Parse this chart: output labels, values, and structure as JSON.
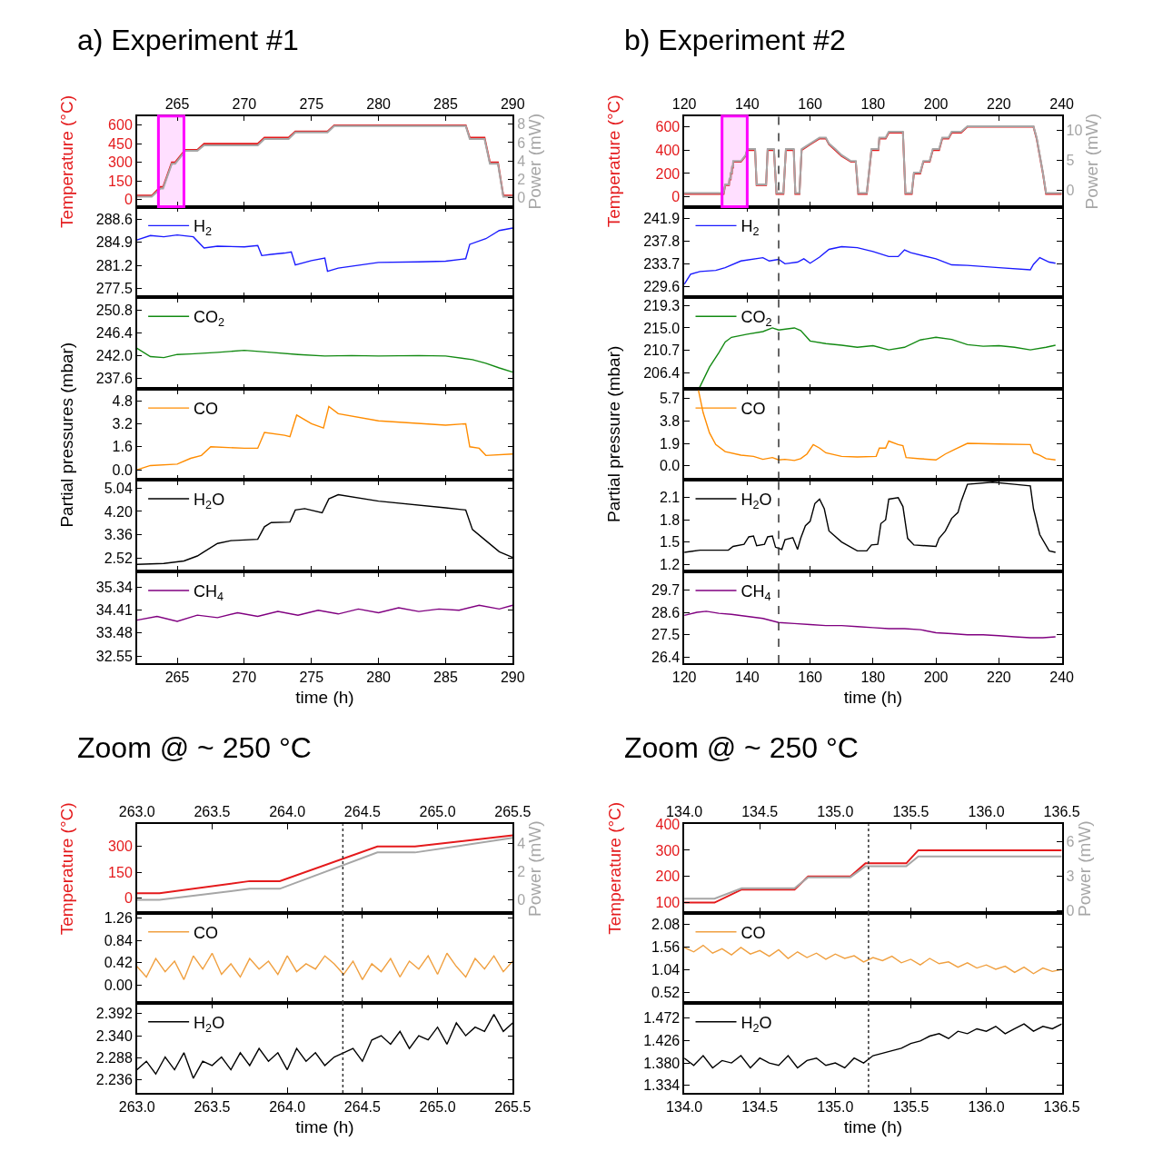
{
  "chart_data": [
    {
      "type": "line",
      "title": "a) Experiment #1",
      "ylabel": "Temperature (°C)",
      "y2label": "Power (mW)",
      "xlim": [
        262,
        290
      ],
      "xticks": [
        265,
        270,
        275,
        280,
        285,
        290
      ],
      "ylim": [
        -60,
        675
      ],
      "yticks": [
        0,
        150,
        300,
        450,
        600
      ],
      "y2lim": [
        -1,
        8.9
      ],
      "y2ticks": [
        0,
        2,
        4,
        6,
        8
      ],
      "x": [
        262,
        263.1,
        263.75,
        263.95,
        264.6,
        264.85,
        265.6,
        266.5,
        267,
        271,
        271.5,
        273.3,
        273.8,
        276.2,
        276.7,
        286.5,
        286.8,
        287.9,
        288.3,
        288.9,
        289.3,
        290
      ],
      "series": [
        {
          "color": "#a6a6a6",
          "axis": "y2",
          "values": [
            0.1,
            0.1,
            1.0,
            1.0,
            3.7,
            3.7,
            5.1,
            5.1,
            5.7,
            5.7,
            6.4,
            6.4,
            7.1,
            7.1,
            7.8,
            7.8,
            6.4,
            6.4,
            3.7,
            3.7,
            0.1,
            0.1
          ]
        },
        {
          "color": "#e41a1c",
          "values": [
            30,
            30,
            100,
            100,
            300,
            300,
            400,
            400,
            450,
            450,
            500,
            500,
            550,
            550,
            600,
            600,
            500,
            500,
            300,
            300,
            30,
            30
          ]
        }
      ],
      "bands": [
        {
          "axis": "x",
          "from": 263.6,
          "to": 265.5,
          "color": "#ff00ff"
        }
      ]
    },
    {
      "type": "line",
      "xlim": [
        262,
        290
      ],
      "xticks": [
        265,
        270,
        275,
        280,
        285,
        290
      ],
      "ylim": [
        276.1,
        290.6
      ],
      "yticks": [
        277.5,
        281.2,
        284.9,
        288.6
      ],
      "tick_labels": "y",
      "legend": "top left",
      "series": [
        {
          "name": "H$_{2}$",
          "color": "#1a1aff",
          "x": [
            262,
            263,
            264,
            265,
            266.2,
            267,
            268,
            270,
            271,
            271.3,
            272,
            273,
            273.5,
            273.8,
            275,
            276,
            276.2,
            277,
            280,
            283,
            285,
            286.5,
            286.8,
            288,
            289,
            290
          ],
          "values": [
            285.3,
            286.0,
            285.8,
            286.1,
            285.8,
            284.0,
            284.3,
            284.2,
            284.4,
            282.8,
            283.0,
            283.2,
            283.4,
            281.3,
            282.0,
            282.4,
            280.3,
            280.8,
            281.7,
            281.8,
            281.9,
            282.3,
            284.6,
            285.5,
            286.8,
            287.2
          ]
        }
      ]
    },
    {
      "type": "line",
      "xlim": [
        262,
        290
      ],
      "xticks": [
        265,
        270,
        275,
        280,
        285,
        290
      ],
      "ylim": [
        235.5,
        253.2
      ],
      "yticks": [
        237.6,
        {
          "value": 242,
          "label": "242.0"
        },
        246.4,
        250.8
      ],
      "tick_labels": "y",
      "legend": "top left",
      "series": [
        {
          "name": "CO$_{2}$",
          "color": "#138a13",
          "x": [
            262,
            263,
            264,
            265,
            266,
            268,
            270,
            272,
            274,
            276,
            278,
            280,
            283,
            285,
            287,
            288,
            289,
            290
          ],
          "values": [
            243.4,
            241.8,
            241.6,
            242.2,
            242.3,
            242.6,
            243.0,
            242.6,
            242.2,
            241.9,
            242.0,
            241.9,
            242.0,
            241.9,
            241.2,
            240.5,
            239.6,
            238.8
          ]
        }
      ]
    },
    {
      "type": "line",
      "xlim": [
        262,
        290
      ],
      "xticks": [
        265,
        270,
        275,
        280,
        285,
        290
      ],
      "ylim": [
        -0.7,
        5.6
      ],
      "yticks": [
        {
          "value": 0,
          "label": "0.0"
        },
        1.6,
        3.2,
        4.8
      ],
      "tick_labels": "y",
      "legend": "top left",
      "ylabel": "Partial pressures (mbar)",
      "series": [
        {
          "name": "CO",
          "color": "#ff8c00",
          "x": [
            262,
            263,
            265,
            266,
            266.8,
            267.5,
            270,
            271,
            271.5,
            273,
            273.4,
            273.9,
            275,
            275.9,
            276.3,
            277,
            280,
            285,
            286.5,
            286.8,
            287.5,
            288,
            290
          ],
          "values": [
            0.0,
            0.3,
            0.4,
            0.8,
            1.0,
            1.6,
            1.5,
            1.5,
            2.6,
            2.4,
            2.3,
            3.8,
            3.2,
            2.9,
            4.4,
            3.9,
            3.4,
            3.1,
            3.2,
            1.6,
            1.5,
            1.0,
            1.1
          ]
        }
      ]
    },
    {
      "type": "line",
      "xlim": [
        262,
        290
      ],
      "xticks": [
        265,
        270,
        275,
        280,
        285,
        290
      ],
      "ylim": [
        2.04,
        5.33
      ],
      "yticks": [
        2.52,
        3.36,
        {
          "value": 4.2,
          "label": "4.20"
        },
        5.04
      ],
      "tick_labels": "y",
      "legend": "top left",
      "series": [
        {
          "name": "H$_{2}$O",
          "color": "#000000",
          "x": [
            262,
            264,
            265.5,
            266.5,
            267,
            268,
            269,
            271,
            271.5,
            272,
            273.4,
            273.8,
            274.5,
            275.8,
            276.3,
            277,
            280,
            285,
            286.5,
            287,
            288,
            289,
            290
          ],
          "values": [
            2.3,
            2.33,
            2.42,
            2.6,
            2.75,
            3.05,
            3.15,
            3.2,
            3.65,
            3.8,
            3.82,
            4.25,
            4.3,
            4.15,
            4.65,
            4.8,
            4.57,
            4.33,
            4.25,
            3.55,
            3.15,
            2.75,
            2.55
          ]
        }
      ]
    },
    {
      "type": "line",
      "xlim": [
        262,
        290
      ],
      "xticks": [
        265,
        270,
        275,
        280,
        285,
        290
      ],
      "ylim": [
        32.26,
        35.96
      ],
      "yticks": [
        32.55,
        33.48,
        34.41,
        35.34
      ],
      "legend": "top left",
      "xlabel": "time (h)",
      "series": [
        {
          "name": "CH$_{4}$",
          "color": "#800080",
          "x": [
            262,
            263.5,
            265,
            266.5,
            268,
            269.5,
            271,
            272.5,
            274,
            275.5,
            277,
            278.5,
            280,
            281.5,
            283,
            284.5,
            286,
            287.5,
            289,
            290
          ],
          "values": [
            34.0,
            34.15,
            33.95,
            34.2,
            34.1,
            34.3,
            34.15,
            34.35,
            34.2,
            34.4,
            34.25,
            34.45,
            34.3,
            34.5,
            34.35,
            34.45,
            34.4,
            34.6,
            34.45,
            34.6
          ]
        }
      ]
    },
    {
      "type": "line",
      "title": "b) Experiment #2",
      "ylabel": "Temperature (°C)",
      "y2label": "Power (mW)",
      "xlim": [
        120,
        240
      ],
      "xticks": [
        120,
        140,
        160,
        180,
        200,
        220,
        240
      ],
      "ylim": [
        -85,
        692
      ],
      "yticks": [
        0,
        200,
        400,
        600
      ],
      "y2lim": [
        -2.7,
        12.4
      ],
      "y2ticks": [
        0,
        5,
        10
      ],
      "x": [
        120,
        132.5,
        133,
        134.2,
        134.38,
        134.73,
        134.82,
        135.1,
        135.2,
        135.47,
        135.55,
        138,
        139.5,
        140,
        142.5,
        143,
        146,
        146.5,
        148.5,
        149.3,
        151.5,
        152.3,
        154.8,
        155.3,
        156.6,
        157.3,
        160,
        163,
        165,
        166,
        168,
        170,
        173,
        174.5,
        175.3,
        178,
        179.5,
        181.7,
        182,
        184,
        185,
        189.5,
        190.3,
        192.3,
        193,
        195,
        196,
        198,
        199,
        201,
        202,
        204,
        205,
        208,
        210,
        231,
        232,
        234,
        235,
        240
      ],
      "series": [
        {
          "color": "#a6a6a6",
          "axis": "y2",
          "values": [
            -0.4,
            -0.4,
            1.0,
            1.0,
            2.0,
            2.0,
            3.0,
            3.0,
            4.0,
            4.0,
            4.9,
            4.9,
            5.9,
            6.9,
            6.9,
            1.0,
            1.0,
            6.9,
            6.9,
            -0.4,
            -0.4,
            6.9,
            6.9,
            -0.4,
            -0.4,
            6.9,
            7.8,
            8.8,
            8.8,
            7.8,
            6.9,
            5.9,
            4.9,
            4.9,
            -0.4,
            -0.4,
            6.9,
            6.9,
            8.8,
            8.8,
            9.8,
            9.8,
            -0.4,
            -0.4,
            3.0,
            3.0,
            4.9,
            4.9,
            6.9,
            6.9,
            8.8,
            8.8,
            9.8,
            9.8,
            10.7,
            10.7,
            8.8,
            3.0,
            -0.4,
            -0.4
          ]
        },
        {
          "color": "#e41a1c",
          "values": [
            25,
            25,
            100,
            100,
            150,
            150,
            200,
            200,
            250,
            250,
            300,
            300,
            350,
            400,
            400,
            100,
            100,
            400,
            400,
            25,
            25,
            400,
            400,
            25,
            25,
            400,
            450,
            500,
            500,
            450,
            400,
            350,
            300,
            300,
            25,
            25,
            400,
            400,
            500,
            500,
            550,
            550,
            25,
            25,
            200,
            200,
            300,
            300,
            400,
            400,
            500,
            500,
            550,
            550,
            600,
            600,
            500,
            200,
            25,
            25
          ]
        }
      ],
      "bands": [
        {
          "axis": "x",
          "from": 132,
          "to": 140,
          "color": "#ff00ff"
        }
      ],
      "ref_lines": [
        {
          "axis": "x",
          "value": 150,
          "line_style": "dashed",
          "color": "#333333"
        }
      ]
    },
    {
      "type": "line",
      "xlim": [
        120,
        240
      ],
      "xticks": [
        120,
        140,
        160,
        180,
        200,
        220,
        240
      ],
      "ylim": [
        227.6,
        244.0
      ],
      "yticks": [
        229.6,
        233.7,
        237.8,
        241.9
      ],
      "tick_labels": "y",
      "legend": "top left",
      "ref_lines": [
        {
          "axis": "x",
          "value": 150,
          "line_style": "dashed",
          "color": "#333333"
        }
      ],
      "series": [
        {
          "name": "H$_{2}$",
          "color": "#1a1aff",
          "x": [
            120,
            122,
            125,
            130,
            133,
            138,
            145,
            147,
            150,
            152,
            156,
            158,
            160,
            163,
            166,
            170,
            175,
            180,
            185,
            188,
            190,
            192,
            200,
            205,
            210,
            220,
            230,
            231,
            233,
            236,
            238
          ],
          "values": [
            230.0,
            231.8,
            232.3,
            232.5,
            233.0,
            234.2,
            234.8,
            234.2,
            234.5,
            233.7,
            234.0,
            234.6,
            233.8,
            234.9,
            236.3,
            236.8,
            236.6,
            235.9,
            235.0,
            235.0,
            236.2,
            235.7,
            234.6,
            233.5,
            233.4,
            233.0,
            232.6,
            233.6,
            234.8,
            234.0,
            233.8
          ]
        }
      ]
    },
    {
      "type": "line",
      "xlim": [
        120,
        240
      ],
      "xticks": [
        120,
        140,
        160,
        180,
        200,
        220,
        240
      ],
      "ylim": [
        203.3,
        220.8
      ],
      "yticks": [
        206.4,
        210.7,
        {
          "value": 215,
          "label": "215.0"
        },
        219.3
      ],
      "tick_labels": "y",
      "legend": "top left",
      "ref_lines": [
        {
          "axis": "x",
          "value": 150,
          "line_style": "dashed",
          "color": "#333333"
        }
      ],
      "series": [
        {
          "name": "CO$_{2}$",
          "color": "#138a13",
          "x": [
            124.6,
            128,
            131,
            133,
            135,
            140,
            145,
            148,
            150,
            155,
            157,
            160,
            165,
            170,
            175,
            180,
            185,
            190,
            195,
            200,
            205,
            210,
            215,
            220,
            225,
            230,
            235,
            238
          ],
          "values": [
            203.3,
            207.5,
            210.3,
            212.3,
            213.2,
            213.8,
            214.3,
            215.0,
            214.6,
            215.0,
            214.5,
            212.5,
            212.0,
            211.7,
            211.3,
            211.6,
            210.8,
            211.3,
            212.7,
            213.2,
            212.8,
            211.8,
            211.5,
            211.6,
            211.3,
            210.8,
            211.3,
            211.7
          ]
        }
      ]
    },
    {
      "type": "line",
      "xlim": [
        120,
        240
      ],
      "xticks": [
        120,
        140,
        160,
        180,
        200,
        220,
        240
      ],
      "ylim": [
        -1.2,
        6.5
      ],
      "yticks": [
        {
          "value": 0,
          "label": "0.0"
        },
        1.9,
        3.8,
        5.7
      ],
      "tick_labels": "y",
      "legend": "top left",
      "ylabel": "Partial pressure (mbar)",
      "ref_lines": [
        {
          "axis": "x",
          "value": 150,
          "line_style": "dashed",
          "color": "#333333"
        }
      ],
      "series": [
        {
          "name": "CO",
          "color": "#ff8c00",
          "x": [
            124.5,
            126,
            128,
            130,
            133,
            138,
            142,
            145,
            148,
            150,
            152,
            155,
            157,
            159,
            161,
            163,
            165,
            170,
            175,
            181,
            182,
            184,
            185,
            188,
            189.5,
            190.5,
            195,
            200,
            203,
            206,
            210,
            220,
            230,
            231,
            233,
            235,
            238
          ],
          "values": [
            6.4,
            4.5,
            2.8,
            1.8,
            1.2,
            0.9,
            0.8,
            0.55,
            0.7,
            0.5,
            0.55,
            0.45,
            0.6,
            1.0,
            1.8,
            1.5,
            1.1,
            0.8,
            0.75,
            0.8,
            1.5,
            1.5,
            2.1,
            1.8,
            1.7,
            0.7,
            0.6,
            0.5,
            1.0,
            1.4,
            1.9,
            1.85,
            1.8,
            1.1,
            0.9,
            0.6,
            0.5
          ]
        }
      ]
    },
    {
      "type": "line",
      "xlim": [
        120,
        240
      ],
      "xticks": [
        120,
        140,
        160,
        180,
        200,
        220,
        240
      ],
      "ylim": [
        1.1,
        2.34
      ],
      "yticks": [
        1.2,
        1.5,
        1.8,
        2.1
      ],
      "tick_labels": "y",
      "legend": "top left",
      "ref_lines": [
        {
          "axis": "x",
          "value": 150,
          "line_style": "dashed",
          "color": "#333333"
        }
      ],
      "series": [
        {
          "name": "H$_{2}$O",
          "color": "#000000",
          "x": [
            120,
            125,
            130,
            134,
            135.5,
            139,
            140.5,
            142,
            143,
            145.5,
            146.5,
            148,
            149,
            151,
            152,
            154.5,
            156,
            157,
            158.5,
            160,
            161.5,
            163,
            164.5,
            166,
            170,
            175,
            178,
            179.5,
            181.5,
            182.5,
            184,
            185,
            188,
            189.5,
            191,
            193,
            200,
            201,
            203,
            205,
            207,
            208,
            210,
            218,
            225,
            230,
            231,
            233,
            236,
            238
          ],
          "values": [
            1.36,
            1.39,
            1.39,
            1.39,
            1.44,
            1.47,
            1.57,
            1.58,
            1.45,
            1.47,
            1.57,
            1.58,
            1.43,
            1.4,
            1.53,
            1.56,
            1.4,
            1.55,
            1.72,
            1.78,
            2.02,
            2.08,
            1.95,
            1.65,
            1.5,
            1.38,
            1.38,
            1.46,
            1.47,
            1.75,
            1.8,
            2.08,
            2.1,
            1.98,
            1.55,
            1.46,
            1.44,
            1.55,
            1.65,
            1.82,
            1.9,
            2.05,
            2.28,
            2.31,
            2.28,
            2.26,
            1.95,
            1.6,
            1.38,
            1.36
          ]
        }
      ]
    },
    {
      "type": "line",
      "xlim": [
        120,
        240
      ],
      "xticks": [
        120,
        140,
        160,
        180,
        200,
        220,
        240
      ],
      "ylim": [
        26.1,
        30.6
      ],
      "yticks": [
        26.4,
        27.5,
        28.6,
        29.7
      ],
      "legend": "top left",
      "xlabel": "time (h)",
      "ref_lines": [
        {
          "axis": "x",
          "value": 150,
          "line_style": "dashed",
          "color": "#333333"
        }
      ],
      "series": [
        {
          "name": "CH$_{4}$",
          "color": "#800080",
          "x": [
            120,
            124,
            127,
            131,
            135,
            140,
            145,
            150,
            155,
            160,
            165,
            170,
            175,
            180,
            185,
            190,
            195,
            200,
            205,
            210,
            215,
            220,
            225,
            230,
            234,
            238
          ],
          "values": [
            28.45,
            28.6,
            28.65,
            28.55,
            28.5,
            28.4,
            28.3,
            28.1,
            28.05,
            28.0,
            27.95,
            27.95,
            27.9,
            27.85,
            27.8,
            27.8,
            27.75,
            27.6,
            27.55,
            27.5,
            27.5,
            27.45,
            27.4,
            27.35,
            27.35,
            27.4
          ]
        }
      ]
    },
    {
      "type": "line",
      "title": "Zoom @ ~ 250 °C",
      "ylabel": "Temperature (°C)",
      "y2label": "Power (mW)",
      "xlim": [
        263,
        265.5
      ],
      "xticks": [
        {
          "value": 263,
          "label": "263.0"
        },
        263.5,
        {
          "value": 264,
          "label": "264.0"
        },
        264.5,
        {
          "value": 265,
          "label": "265.0"
        },
        265.5
      ],
      "ylim": [
        -85,
        430
      ],
      "yticks": [
        0,
        150,
        300
      ],
      "y2lim": [
        -0.93,
        5.34
      ],
      "y2ticks": [
        0,
        2,
        4
      ],
      "x": [
        263,
        263.15,
        263.75,
        263.95,
        264.6,
        264.85,
        265.5
      ],
      "series": [
        {
          "color": "#a6a6a6",
          "axis": "y2",
          "values": [
            0,
            0,
            0.78,
            0.78,
            3.34,
            3.34,
            4.37
          ]
        },
        {
          "color": "#e41a1c",
          "values": [
            30,
            30,
            100,
            100,
            300,
            300,
            365
          ]
        }
      ],
      "ref_lines": [
        {
          "axis": "x",
          "value": 264.37,
          "line_style": "dotted",
          "color": "#333333"
        }
      ]
    },
    {
      "type": "line",
      "xlim": [
        263,
        265.5
      ],
      "xticks": [
        263,
        263.5,
        264,
        264.5,
        265,
        265.5
      ],
      "ylim": [
        -0.34,
        1.36
      ],
      "yticks": [
        {
          "value": 0,
          "label": "0.00"
        },
        0.42,
        0.84,
        1.26
      ],
      "tick_labels": "y",
      "legend": "top left",
      "ref_lines": [
        {
          "axis": "x",
          "value": 264.37,
          "line_style": "dotted",
          "color": "#333333"
        }
      ],
      "x": [
        263,
        263.0625,
        263.125,
        263.1875,
        263.25,
        263.3125,
        263.375,
        263.4375,
        263.5,
        263.5625,
        263.625,
        263.6875,
        263.75,
        263.8125,
        263.875,
        263.9375,
        264,
        264.0625,
        264.125,
        264.1875,
        264.25,
        264.3125,
        264.375,
        264.4375,
        264.5,
        264.5625,
        264.625,
        264.6875,
        264.75,
        264.8125,
        264.875,
        264.9375,
        265,
        265.0625,
        265.125,
        265.1875,
        265.25,
        265.3125,
        265.375,
        265.4375,
        265.5
      ],
      "series": [
        {
          "name": "CO",
          "color": "#f0a040",
          "values": [
            0.35,
            0.15,
            0.5,
            0.25,
            0.45,
            0.1,
            0.55,
            0.3,
            0.6,
            0.2,
            0.4,
            0.15,
            0.5,
            0.3,
            0.45,
            0.2,
            0.55,
            0.25,
            0.4,
            0.3,
            0.55,
            0.4,
            0.2,
            0.45,
            0.1,
            0.4,
            0.25,
            0.5,
            0.15,
            0.45,
            0.3,
            0.55,
            0.2,
            0.6,
            0.35,
            0.15,
            0.5,
            0.3,
            0.55,
            0.25,
            0.45
          ]
        }
      ]
    },
    {
      "type": "line",
      "xlim": [
        263,
        265.5
      ],
      "xticks": [
        {
          "value": 263,
          "label": "263.0"
        },
        263.5,
        {
          "value": 264,
          "label": "264.0"
        },
        264.5,
        {
          "value": 265,
          "label": "265.0"
        },
        265.5
      ],
      "ylim": [
        2.206,
        2.417
      ],
      "yticks": [
        2.236,
        2.288,
        {
          "value": 2.34,
          "label": "2.340"
        },
        2.392
      ],
      "legend": "top left",
      "xlabel": "time (h)",
      "ref_lines": [
        {
          "axis": "x",
          "value": 264.37,
          "line_style": "dotted",
          "color": "#333333"
        }
      ],
      "x": [
        263,
        263.0625,
        263.125,
        263.1875,
        263.25,
        263.3125,
        263.375,
        263.4375,
        263.5,
        263.5625,
        263.625,
        263.6875,
        263.75,
        263.8125,
        263.875,
        263.9375,
        264,
        264.0625,
        264.125,
        264.1875,
        264.25,
        264.3125,
        264.375,
        264.4375,
        264.5,
        264.5625,
        264.625,
        264.6875,
        264.75,
        264.8125,
        264.875,
        264.9375,
        265,
        265.0625,
        265.125,
        265.1875,
        265.25,
        265.3125,
        265.375,
        265.4375,
        265.5
      ],
      "series": [
        {
          "name": "H$_{2}$O",
          "color": "#000000",
          "values": [
            2.26,
            2.28,
            2.25,
            2.29,
            2.26,
            2.3,
            2.24,
            2.28,
            2.27,
            2.29,
            2.26,
            2.3,
            2.27,
            2.31,
            2.28,
            2.3,
            2.26,
            2.31,
            2.28,
            2.3,
            2.27,
            2.29,
            2.3,
            2.31,
            2.28,
            2.33,
            2.34,
            2.32,
            2.35,
            2.31,
            2.34,
            2.33,
            2.36,
            2.32,
            2.37,
            2.34,
            2.36,
            2.35,
            2.39,
            2.35,
            2.37
          ]
        }
      ]
    },
    {
      "type": "line",
      "title": "Zoom @ ~ 250 °C",
      "ylabel": "Temperature (°C)",
      "y2label": "Power (mW)",
      "xlim": [
        134,
        136.5
      ],
      "xticks": [
        {
          "value": 134,
          "label": "134.0"
        },
        134.5,
        {
          "value": 135,
          "label": "135.0"
        },
        135.5,
        {
          "value": 136,
          "label": "136.0"
        },
        136.5
      ],
      "ylim": [
        60,
        400
      ],
      "yticks": [
        100,
        200,
        300,
        400
      ],
      "y2lim": [
        -0.2,
        7.5
      ],
      "y2ticks": [
        0,
        3,
        6
      ],
      "x": [
        134,
        134.2,
        134.38,
        134.73,
        134.82,
        135.1,
        135.2,
        135.47,
        135.55,
        136.5
      ],
      "series": [
        {
          "color": "#a6a6a6",
          "axis": "y2",
          "values": [
            1.05,
            1.05,
            1.95,
            1.95,
            2.9,
            2.9,
            3.85,
            3.85,
            4.7,
            4.7
          ]
        },
        {
          "color": "#e41a1c",
          "values": [
            100,
            100,
            150,
            150,
            200,
            200,
            250,
            250,
            300,
            300
          ]
        }
      ],
      "ref_lines": [
        {
          "axis": "x",
          "value": 135.22,
          "line_style": "dotted",
          "color": "#333333"
        }
      ]
    },
    {
      "type": "line",
      "xlim": [
        134,
        136.5
      ],
      "xticks": [
        134,
        134.5,
        135,
        135.5,
        136,
        136.5
      ],
      "ylim": [
        0.28,
        2.34
      ],
      "yticks": [
        0.52,
        1.04,
        1.56,
        2.08
      ],
      "tick_labels": "y",
      "legend": "top left",
      "ref_lines": [
        {
          "axis": "x",
          "value": 135.22,
          "line_style": "dotted",
          "color": "#333333"
        }
      ],
      "x": [
        134,
        134.0625,
        134.125,
        134.1875,
        134.25,
        134.3125,
        134.375,
        134.4375,
        134.5,
        134.5625,
        134.625,
        134.6875,
        134.75,
        134.8125,
        134.875,
        134.9375,
        135,
        135.0625,
        135.125,
        135.1875,
        135.25,
        135.3125,
        135.375,
        135.4375,
        135.5,
        135.5625,
        135.625,
        135.6875,
        135.75,
        135.8125,
        135.875,
        135.9375,
        136,
        136.0625,
        136.125,
        136.1875,
        136.25,
        136.3125,
        136.375,
        136.4375,
        136.5
      ],
      "series": [
        {
          "name": "CO",
          "color": "#f0a040",
          "values": [
            1.55,
            1.45,
            1.6,
            1.42,
            1.52,
            1.38,
            1.55,
            1.4,
            1.48,
            1.35,
            1.5,
            1.3,
            1.45,
            1.32,
            1.42,
            1.28,
            1.4,
            1.3,
            1.36,
            1.22,
            1.32,
            1.25,
            1.35,
            1.2,
            1.28,
            1.15,
            1.3,
            1.18,
            1.22,
            1.1,
            1.2,
            1.08,
            1.15,
            1.05,
            1.12,
            0.98,
            1.1,
            0.95,
            1.08,
            1.0,
            1.05
          ]
        }
      ]
    },
    {
      "type": "line",
      "xlim": [
        134,
        136.5
      ],
      "xticks": [
        {
          "value": 134,
          "label": "134.0"
        },
        134.5,
        {
          "value": 135,
          "label": "135.0"
        },
        135.5,
        {
          "value": 136,
          "label": "136.0"
        },
        136.5
      ],
      "ylim": [
        1.319,
        1.503
      ],
      "yticks": [
        1.334,
        {
          "value": 1.38,
          "label": "1.380"
        },
        1.426,
        1.472
      ],
      "legend": "top left",
      "xlabel": "time (h)",
      "ref_lines": [
        {
          "axis": "x",
          "value": 135.22,
          "line_style": "dotted",
          "color": "#333333"
        }
      ],
      "x": [
        134,
        134.0625,
        134.125,
        134.1875,
        134.25,
        134.3125,
        134.375,
        134.4375,
        134.5,
        134.5625,
        134.625,
        134.6875,
        134.75,
        134.8125,
        134.875,
        134.9375,
        135,
        135.0625,
        135.125,
        135.1875,
        135.25,
        135.3125,
        135.375,
        135.4375,
        135.5,
        135.5625,
        135.625,
        135.6875,
        135.75,
        135.8125,
        135.875,
        135.9375,
        136,
        136.0625,
        136.125,
        136.1875,
        136.25,
        136.3125,
        136.375,
        136.4375,
        136.5
      ],
      "series": [
        {
          "name": "H$_{2}$O",
          "color": "#000000",
          "values": [
            1.39,
            1.375,
            1.395,
            1.37,
            1.385,
            1.38,
            1.395,
            1.37,
            1.39,
            1.38,
            1.375,
            1.395,
            1.37,
            1.385,
            1.39,
            1.375,
            1.38,
            1.37,
            1.39,
            1.38,
            1.395,
            1.4,
            1.405,
            1.41,
            1.42,
            1.425,
            1.435,
            1.44,
            1.43,
            1.445,
            1.44,
            1.45,
            1.445,
            1.455,
            1.44,
            1.45,
            1.46,
            1.445,
            1.455,
            1.45,
            1.46
          ]
        }
      ]
    }
  ]
}
